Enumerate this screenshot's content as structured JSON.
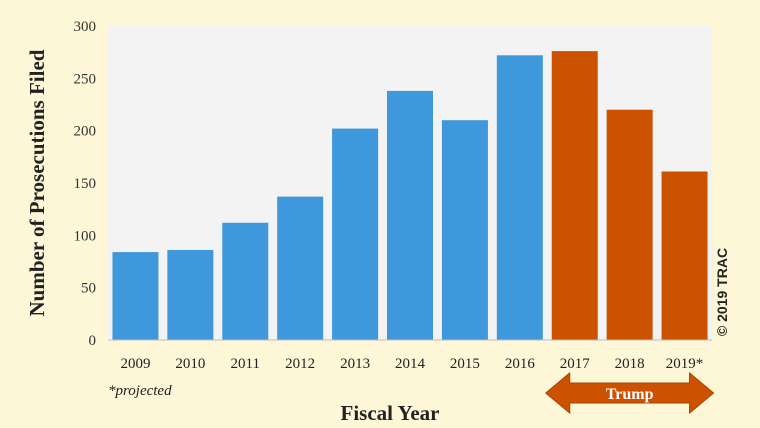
{
  "chart_data": {
    "type": "bar",
    "categories": [
      "2009",
      "2010",
      "2011",
      "2012",
      "2013",
      "2014",
      "2015",
      "2016",
      "2017",
      "2018",
      "2019*"
    ],
    "values": [
      84,
      86,
      112,
      137,
      202,
      238,
      210,
      272,
      276,
      220,
      161
    ],
    "colors": [
      "#3f97dc",
      "#3f97dc",
      "#3f97dc",
      "#3f97dc",
      "#3f97dc",
      "#3f97dc",
      "#3f97dc",
      "#3f97dc",
      "#cc5200",
      "#cc5200",
      "#cc5200"
    ],
    "xlabel": "Fiscal Year",
    "ylabel": "Number of Prosecutions Filed",
    "ylim": [
      0,
      300
    ],
    "yticks": [
      0,
      50,
      100,
      150,
      200,
      250,
      300
    ],
    "grid": false,
    "annotations": {
      "footnote": "*projected",
      "copyright": "© 2019 TRAC",
      "period_label": "Trump",
      "period_categories": [
        "2017",
        "2018",
        "2019*"
      ]
    }
  },
  "style": {
    "plot_background": "#f3f3f3",
    "page_background": "#fdf7d8",
    "blue": "#3f97dc",
    "orange": "#cc5200"
  }
}
